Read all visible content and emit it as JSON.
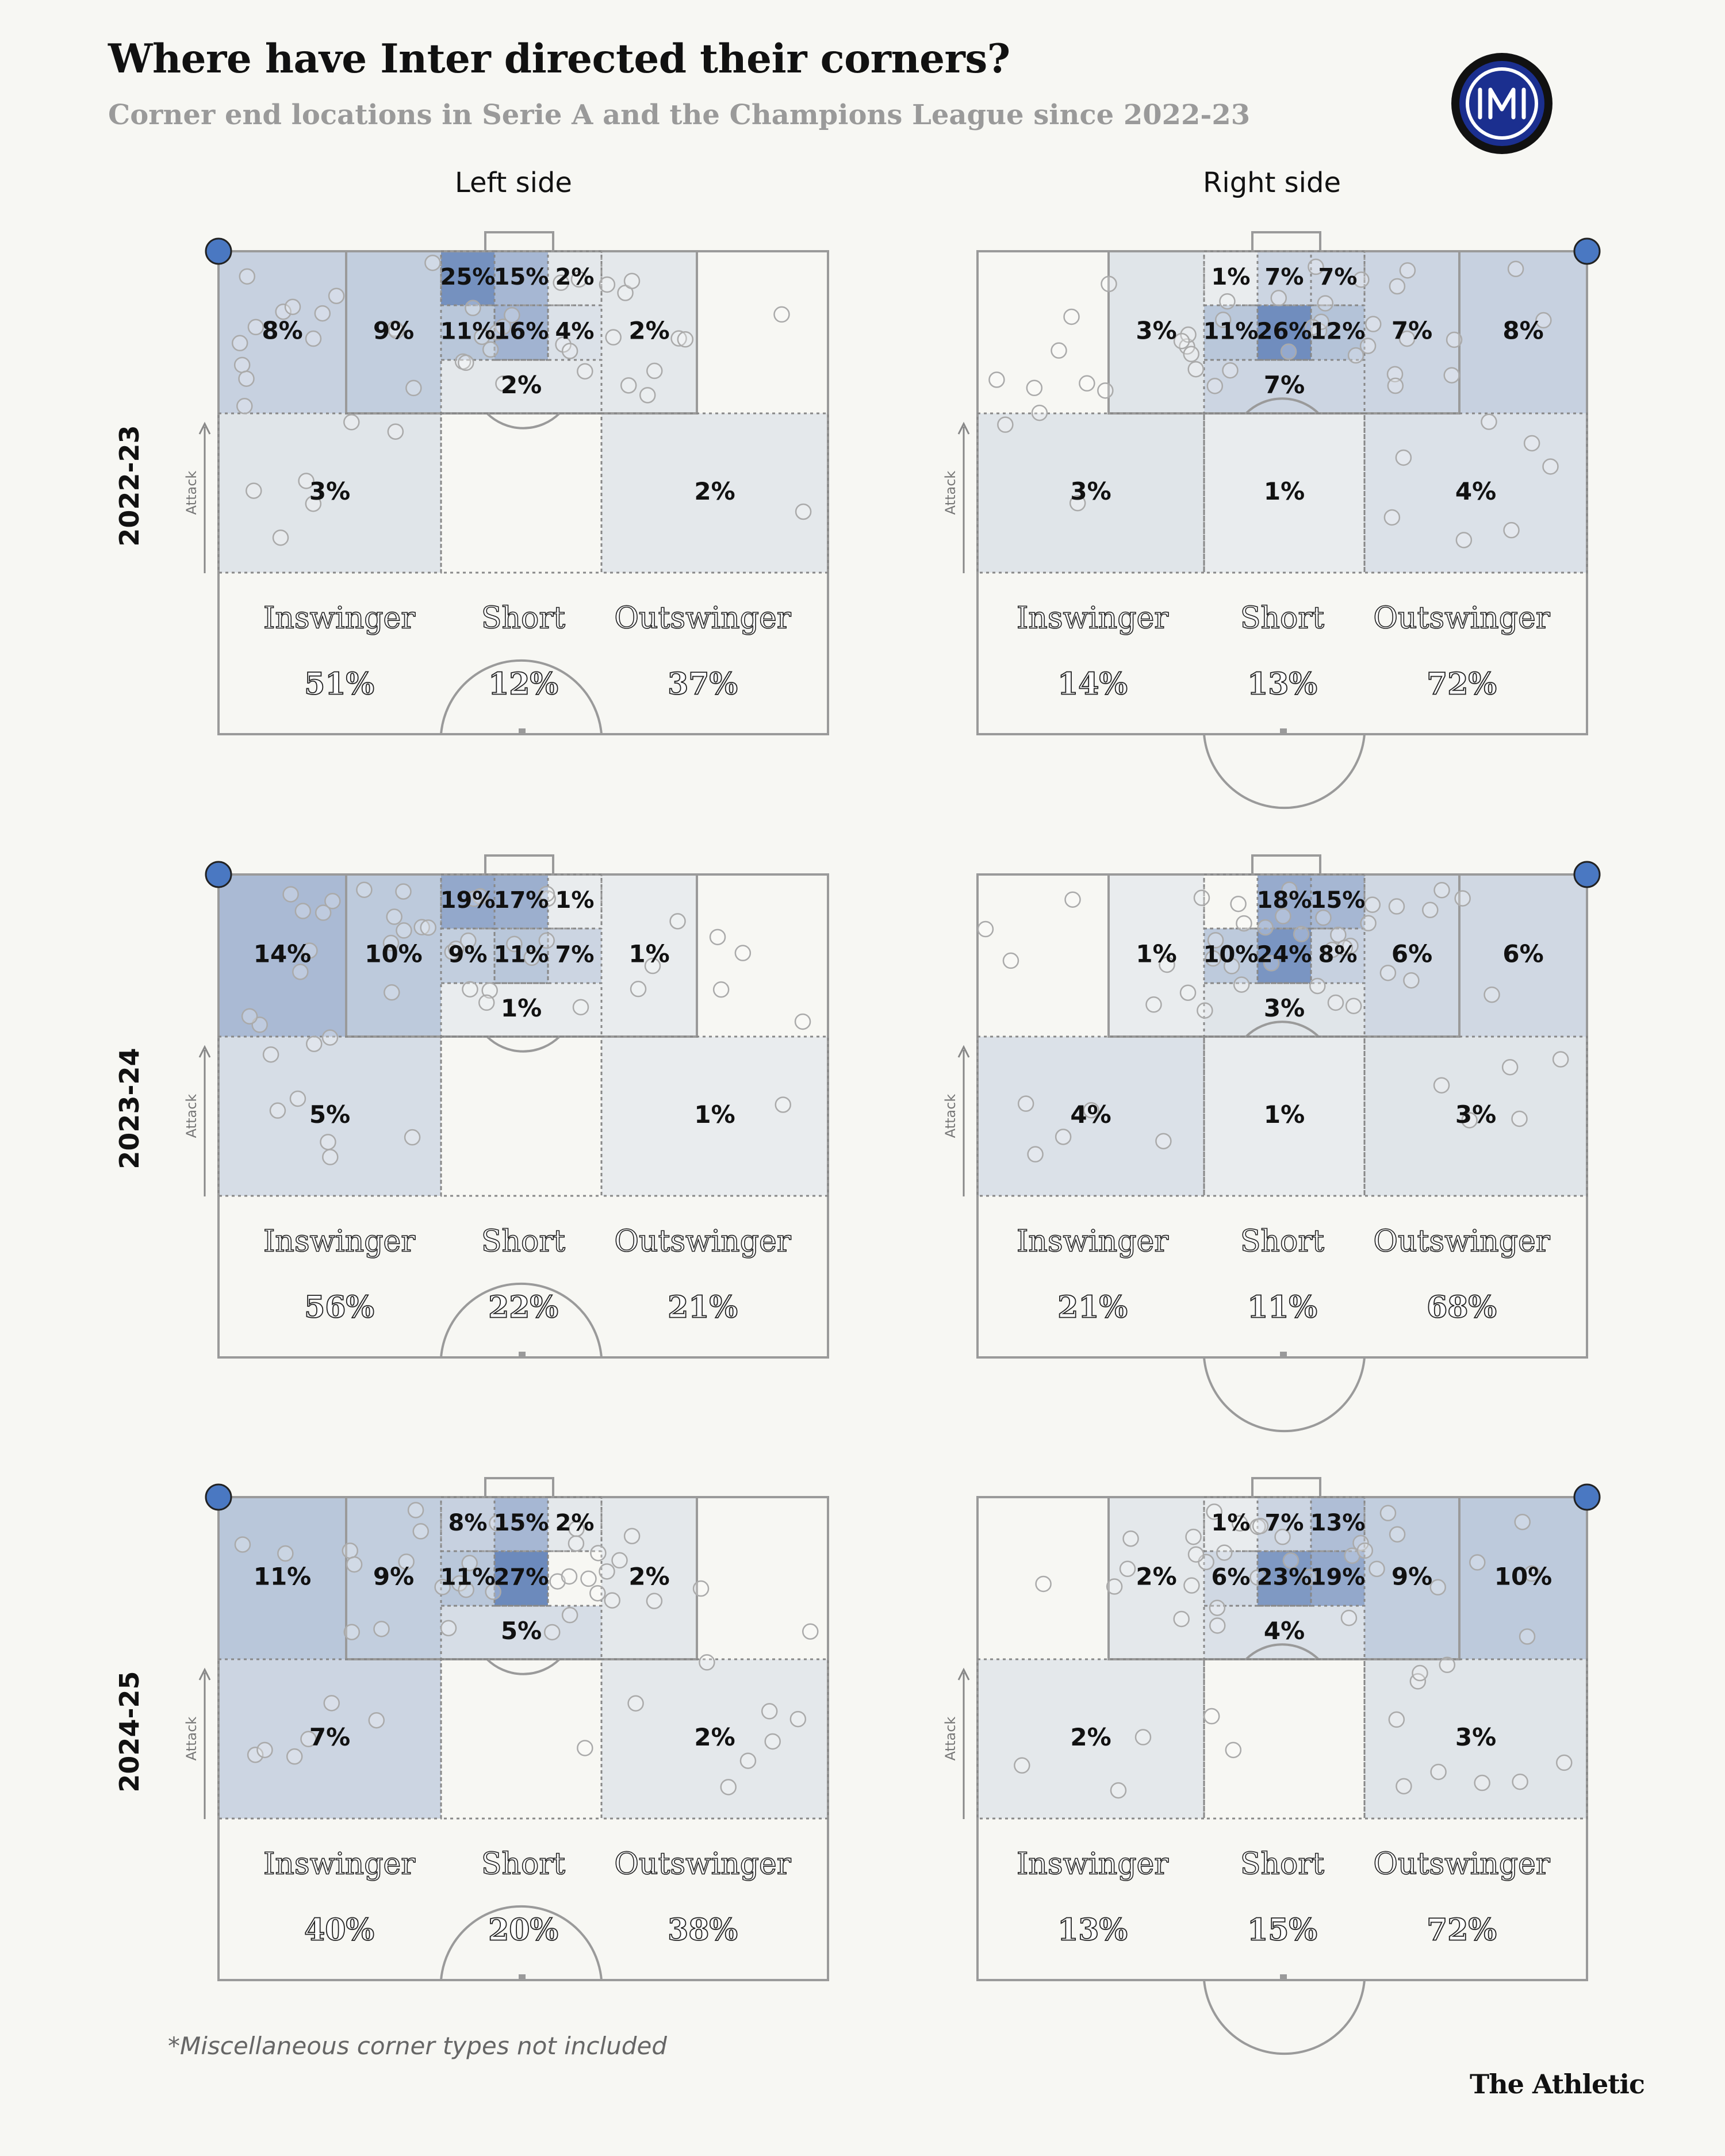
{
  "title": "Where have Inter directed their corners?",
  "subtitle": "Corner end locations in Serie A and the Champions League since 2022-23",
  "columns": [
    "Left side",
    "Right side"
  ],
  "attack_label": "Attack",
  "footnote": "*Miscellaneous corner types not included",
  "brand": "The Athletic",
  "colors": {
    "background": "#f7f7f3",
    "heat": "#4a6fae",
    "corner_dot": "#4a78c2",
    "lines": "#999999"
  },
  "chart_data": {
    "type": "heatmap",
    "zone_names": [
      "far_wide",
      "box_side",
      "six_a",
      "six_b",
      "six_c",
      "pen_a",
      "pen_b",
      "pen_c",
      "box_far",
      "pen_spot",
      "edge_near",
      "edge_mid",
      "edge_far"
    ],
    "panels": [
      {
        "season": "2022-23",
        "side": "Left side",
        "zones": {
          "far_wide": 8,
          "box_side": 9,
          "six_a": 25,
          "six_b": 15,
          "six_c": 2,
          "pen_a": 11,
          "pen_b": 16,
          "pen_c": 4,
          "box_far": 2,
          "pen_spot": 2,
          "edge_near": 3,
          "edge_mid": null,
          "edge_far": 2
        },
        "summary": [
          {
            "label": "Inswinger",
            "value": 51
          },
          {
            "label": "Short",
            "value": 12
          },
          {
            "label": "Outswinger",
            "value": 37
          }
        ]
      },
      {
        "season": "2022-23",
        "side": "Right side",
        "zones": {
          "far_wide": 8,
          "box_side": 7,
          "six_a": 7,
          "six_b": 7,
          "six_c": 1,
          "pen_a": 12,
          "pen_b": 26,
          "pen_c": 11,
          "box_far": 3,
          "pen_spot": 7,
          "edge_near": 4,
          "edge_mid": 1,
          "edge_far": 3
        },
        "summary": [
          {
            "label": "Inswinger",
            "value": 14
          },
          {
            "label": "Short",
            "value": 13
          },
          {
            "label": "Outswinger",
            "value": 72
          }
        ]
      },
      {
        "season": "2023-24",
        "side": "Left side",
        "zones": {
          "far_wide": 14,
          "box_side": 10,
          "six_a": 19,
          "six_b": 17,
          "six_c": 1,
          "pen_a": 9,
          "pen_b": 11,
          "pen_c": 7,
          "box_far": 1,
          "pen_spot": 1,
          "edge_near": 5,
          "edge_mid": null,
          "edge_far": 1
        },
        "summary": [
          {
            "label": "Inswinger",
            "value": 56
          },
          {
            "label": "Short",
            "value": 22
          },
          {
            "label": "Outswinger",
            "value": 21
          }
        ]
      },
      {
        "season": "2023-24",
        "side": "Right side",
        "zones": {
          "far_wide": 6,
          "box_side": 6,
          "six_a": 15,
          "six_b": 18,
          "six_c": null,
          "pen_a": 8,
          "pen_b": 24,
          "pen_c": 10,
          "box_far": 1,
          "pen_spot": 3,
          "edge_near": 3,
          "edge_mid": 1,
          "edge_far": 4
        },
        "summary": [
          {
            "label": "Inswinger",
            "value": 21
          },
          {
            "label": "Short",
            "value": 11
          },
          {
            "label": "Outswinger",
            "value": 68
          }
        ]
      },
      {
        "season": "2024-25",
        "side": "Left side",
        "zones": {
          "far_wide": 11,
          "box_side": 9,
          "six_a": 8,
          "six_b": 15,
          "six_c": 2,
          "pen_a": 11,
          "pen_b": 27,
          "pen_c": null,
          "box_far": 2,
          "pen_spot": 5,
          "edge_near": 7,
          "edge_mid": null,
          "edge_far": 2
        },
        "summary": [
          {
            "label": "Inswinger",
            "value": 40
          },
          {
            "label": "Short",
            "value": 20
          },
          {
            "label": "Outswinger",
            "value": 38
          }
        ]
      },
      {
        "season": "2024-25",
        "side": "Right side",
        "zones": {
          "far_wide": 10,
          "box_side": 9,
          "six_a": 13,
          "six_b": 7,
          "six_c": 1,
          "pen_a": 19,
          "pen_b": 23,
          "pen_c": 6,
          "box_far": 2,
          "pen_spot": 4,
          "edge_near": 3,
          "edge_mid": null,
          "edge_far": 2
        },
        "summary": [
          {
            "label": "Inswinger",
            "value": 13
          },
          {
            "label": "Short",
            "value": 15
          },
          {
            "label": "Outswinger",
            "value": 72
          }
        ]
      }
    ]
  }
}
